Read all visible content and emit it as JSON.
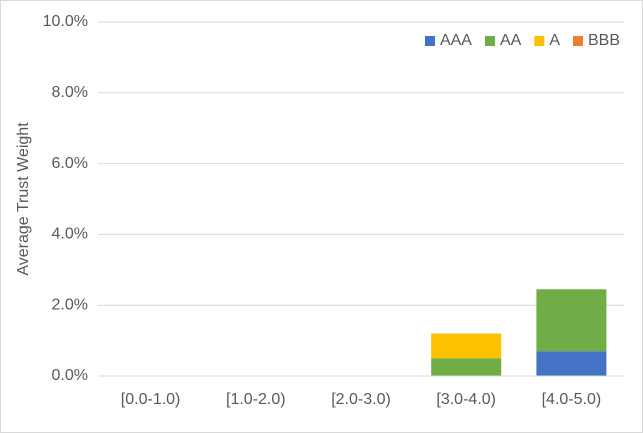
{
  "chart_data": {
    "type": "stacked-bar",
    "y_label": "Average Trust Weight",
    "categories": [
      "[0.0-1.0)",
      "[1.0-2.0)",
      "[2.0-3.0)",
      "[3.0-4.0)",
      "[4.0-5.0)"
    ],
    "series": [
      {
        "name": "AAA",
        "color": "#4472c4",
        "values": [
          0,
          0,
          0,
          0,
          0.7
        ]
      },
      {
        "name": "AA",
        "color": "#70ad47",
        "values": [
          0,
          0,
          0,
          0.5,
          1.75
        ]
      },
      {
        "name": "A",
        "color": "#ffc000",
        "values": [
          0,
          0,
          0,
          0.7,
          0
        ]
      },
      {
        "name": "BBB",
        "color": "#ed7d31",
        "values": [
          0,
          0,
          0,
          0,
          0
        ]
      }
    ],
    "ylim": [
      0,
      10
    ],
    "yticks": [
      {
        "value": 0,
        "label": "0.0%"
      },
      {
        "value": 2,
        "label": "2.0%"
      },
      {
        "value": 4,
        "label": "4.0%"
      },
      {
        "value": 6,
        "label": "6.0%"
      },
      {
        "value": 8,
        "label": "8.0%"
      },
      {
        "value": 10,
        "label": "10.0%"
      }
    ],
    "grid": true,
    "legend": "top-right"
  }
}
